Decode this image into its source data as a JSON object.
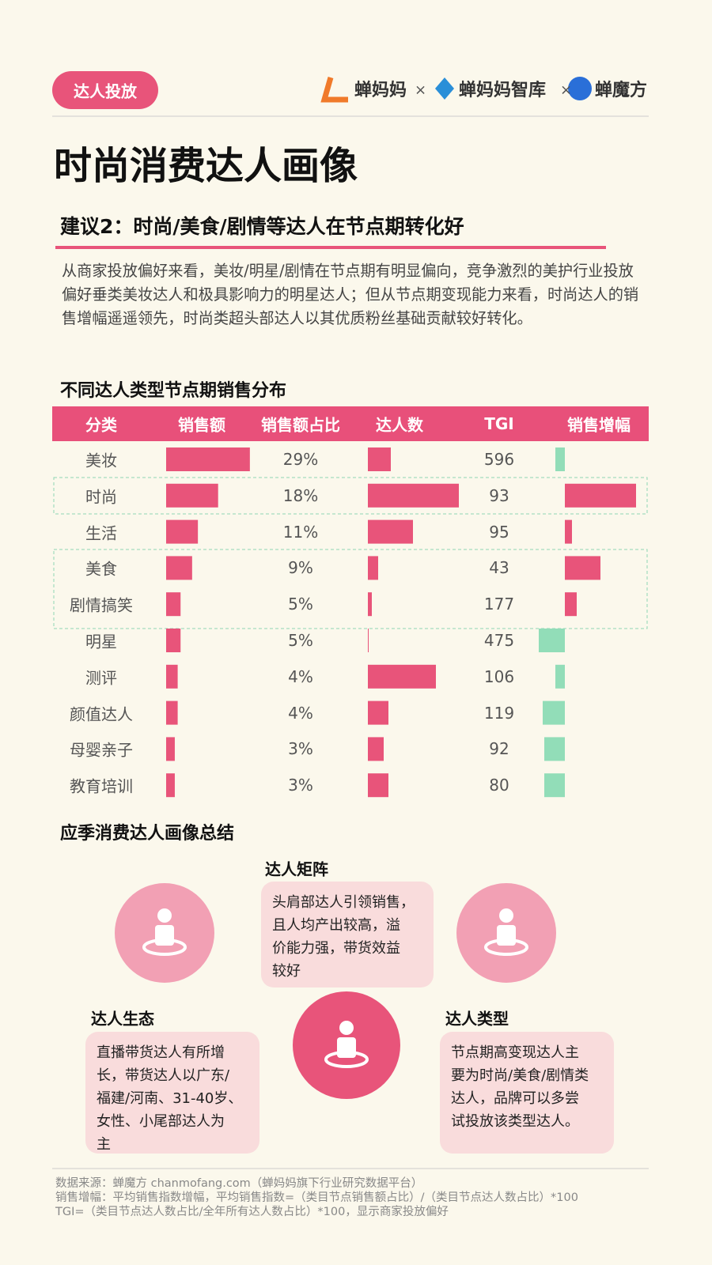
{
  "header": {
    "tag": "达人投放",
    "logos": [
      "蝉妈妈",
      "蝉妈妈智库",
      "蝉魔方"
    ],
    "separator": "×"
  },
  "title": "时尚消费达人画像",
  "subtitle": "建议2：时尚/美食/剧情等达人在节点期转化好",
  "intro": "从商家投放偏好来看，美妆/明星/剧情在节点期有明显偏向，竞争激烈的美护行业投放偏好垂类美妆达人和极具影响力的明星达人；但从节点期变现能力来看，时尚达人的销售增幅遥遥领先，时尚类超头部达人以其优质粉丝基础贡献较好转化。",
  "table": {
    "title": "不同达人类型节点期销售分布",
    "columns": [
      "分类",
      "销售额",
      "销售额占比",
      "达人数",
      "TGI",
      "销售增幅"
    ],
    "positive_color": "#e8547a",
    "negative_color": "#92ddb8",
    "rows": [
      {
        "category": "美妆",
        "sales_share": 29,
        "sales_share_label": "29%",
        "creators": 29,
        "tgi": 596,
        "growth": -12
      },
      {
        "category": "时尚",
        "sales_share": 18,
        "sales_share_label": "18%",
        "creators": 115,
        "tgi": 93,
        "growth": 90
      },
      {
        "category": "生活",
        "sales_share": 11,
        "sales_share_label": "11%",
        "creators": 57,
        "tgi": 95,
        "growth": 9
      },
      {
        "category": "美食",
        "sales_share": 9,
        "sales_share_label": "9%",
        "creators": 13,
        "tgi": 43,
        "growth": 45
      },
      {
        "category": "剧情搞笑",
        "sales_share": 5,
        "sales_share_label": "5%",
        "creators": 5,
        "tgi": 177,
        "growth": 15
      },
      {
        "category": "明星",
        "sales_share": 5,
        "sales_share_label": "5%",
        "creators": 1,
        "tgi": 475,
        "growth": -33
      },
      {
        "category": "测评",
        "sales_share": 4,
        "sales_share_label": "4%",
        "creators": 86,
        "tgi": 106,
        "growth": -12
      },
      {
        "category": "颜值达人",
        "sales_share": 4,
        "sales_share_label": "4%",
        "creators": 26,
        "tgi": 119,
        "growth": -28
      },
      {
        "category": "母婴亲子",
        "sales_share": 3,
        "sales_share_label": "3%",
        "creators": 20,
        "tgi": 92,
        "growth": -26
      },
      {
        "category": "教育培训",
        "sales_share": 3,
        "sales_share_label": "3%",
        "creators": 26,
        "tgi": 80,
        "growth": -26
      }
    ]
  },
  "summary": {
    "title": "应季消费达人画像总结",
    "items": [
      {
        "title": "达人矩阵",
        "lines": [
          "头肩部达人引领销售，",
          "且人均产出较高，溢",
          "价能力强，带货效益",
          "较好"
        ]
      },
      {
        "title": "达人生态",
        "lines": [
          "直播带货达人有所增",
          "长，带货达人以广东/",
          "福建/河南、31-40岁、",
          "女性、小尾部达人为",
          "主"
        ]
      },
      {
        "title": "达人类型",
        "lines": [
          "节点期高变现达人主",
          "要为时尚/美食/剧情类",
          "达人，品牌可以多尝",
          "试投放该类型达人。"
        ]
      }
    ]
  },
  "footer": [
    "数据来源：蝉魔方 chanmofang.com（蝉妈妈旗下行业研究数据平台）",
    "销售增幅：平均销售指数增幅，平均销售指数=（类目节点销售额占比）/（类目节点达人数占比）*100",
    "TGI=（类目节点达人数占比/全年所有达人数占比）*100，显示商家投放偏好"
  ]
}
